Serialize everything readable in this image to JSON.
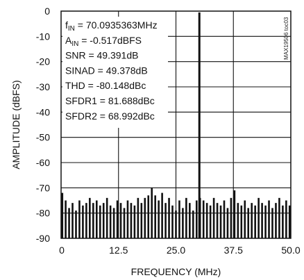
{
  "chart_data": {
    "type": "bar",
    "title": "",
    "xlabel": "FREQUENCY (MHz)",
    "ylabel": "AMPLITUDE (dBFS)",
    "xlim": [
      0,
      50
    ],
    "ylim": [
      -90,
      0
    ],
    "x_ticks": [
      0,
      12.5,
      25.0,
      37.5,
      50.0
    ],
    "x_tick_labels": [
      "0",
      "12.5",
      "25.0",
      "37.5",
      "50.0"
    ],
    "y_ticks": [
      0,
      -10,
      -20,
      -30,
      -40,
      -50,
      -60,
      -70,
      -80,
      -90
    ],
    "y_tick_labels": [
      "0",
      "-10",
      "-20",
      "-30",
      "-40",
      "-50",
      "-60",
      "-70",
      "-80",
      "-90"
    ],
    "grid": true,
    "series": [
      {
        "name": "",
        "x": [
          0.0,
          0.8,
          1.55,
          2.3,
          3.05,
          3.8,
          4.55,
          5.3,
          6.05,
          6.8,
          7.55,
          8.3,
          9.05,
          9.8,
          10.55,
          11.3,
          12.05,
          12.8,
          13.55,
          14.3,
          15.05,
          15.8,
          16.55,
          17.3,
          18.05,
          18.8,
          19.55,
          20.3,
          21.05,
          21.8,
          22.55,
          23.3,
          24.05,
          24.8,
          25.55,
          26.3,
          27.05,
          27.8,
          28.55,
          29.3,
          29.87,
          30.05,
          30.8,
          31.55,
          32.3,
          33.05,
          33.8,
          34.55,
          35.3,
          36.05,
          36.8,
          37.55,
          38.3,
          39.05,
          39.8,
          40.55,
          41.3,
          42.05,
          42.8,
          43.55,
          44.3,
          45.05,
          45.8,
          46.55,
          47.3,
          48.05,
          48.8,
          49.55
        ],
        "values": [
          -72,
          -75,
          -78,
          -76,
          -79,
          -75,
          -77,
          -76,
          -74,
          -76,
          -75,
          -77,
          -76,
          -74,
          -77,
          -78,
          -75,
          -76,
          -78,
          -75,
          -76,
          -77,
          -74,
          -76,
          -74,
          -73,
          -70,
          -73,
          -75,
          -72,
          -76,
          -74,
          -77,
          -79,
          -75,
          -78,
          -74,
          -76,
          -79,
          -75,
          -0.517,
          -74,
          -75,
          -76,
          -77,
          -74,
          -76,
          -77,
          -75,
          -78,
          -74,
          -71,
          -76,
          -77,
          -75,
          -78,
          -76,
          -77,
          -74,
          -76,
          -77,
          -75,
          -78,
          -76,
          -74,
          -77,
          -75,
          -77
        ]
      }
    ],
    "annotations": {
      "watermark": "MAX19506 toc03"
    }
  },
  "annotation_lines": [
    {
      "main": "f",
      "sub": "IN",
      "rest": " = 70.0935363MHz"
    },
    {
      "main": "A",
      "sub": "IN",
      "rest": " = -0.517dBFS"
    },
    {
      "main": "SNR = 49.391dB",
      "sub": "",
      "rest": ""
    },
    {
      "main": "SINAD = 49.378dB",
      "sub": "",
      "rest": ""
    },
    {
      "main": "THD = -80.148dBc",
      "sub": "",
      "rest": ""
    },
    {
      "main": "SFDR1 = 81.688dBc",
      "sub": "",
      "rest": ""
    },
    {
      "main": "SFDR2 = 68.992dBc",
      "sub": "",
      "rest": ""
    }
  ],
  "colors": {
    "axis": "#111111",
    "grid": "#111111",
    "bars": "#111111",
    "background": "#ffffff"
  }
}
